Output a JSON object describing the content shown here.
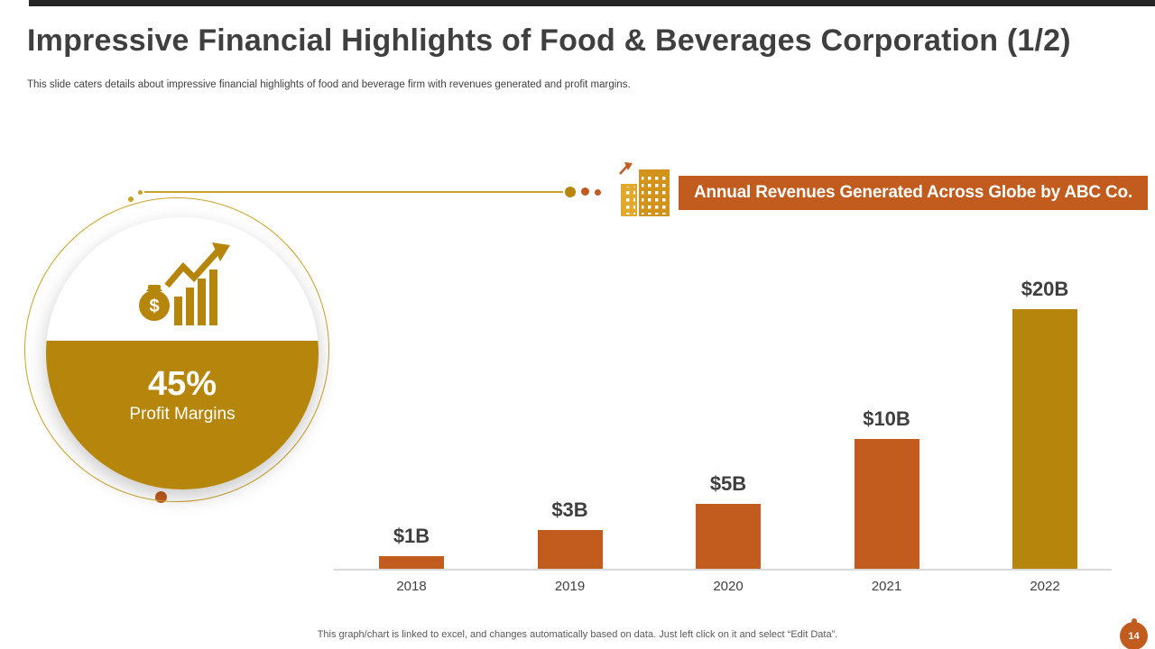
{
  "slide": {
    "title": "Impressive Financial Highlights of Food & Beverages Corporation (1/2)",
    "subtitle": "This slide caters details about impressive financial highlights of food and beverage firm with revenues generated and profit margins.",
    "footer_note": "This graph/chart is linked to excel, and changes automatically based on data. Just left click on it and select “Edit Data”.",
    "page_number": "14"
  },
  "profit_circle": {
    "value": "45%",
    "label": "Profit Margins",
    "icon": "money-bag-growth-chart-icon"
  },
  "banner": {
    "title": "Annual Revenues Generated Across Globe by ABC Co.",
    "icon": "building-icon"
  },
  "chart_data": {
    "type": "bar",
    "title": "Annual Revenues Generated Across Globe by ABC Co.",
    "categories": [
      "2018",
      "2019",
      "2020",
      "2021",
      "2022"
    ],
    "values": [
      1,
      3,
      5,
      10,
      20
    ],
    "value_labels": [
      "$1B",
      "$3B",
      "$5B",
      "$10B",
      "$20B"
    ],
    "unit": "billions USD",
    "xlabel": "",
    "ylabel": "",
    "ylim": [
      0,
      20
    ],
    "grid": false,
    "legend": "none",
    "bar_colors": [
      "#C25B1E",
      "#C25B1E",
      "#C25B1E",
      "#C25B1E",
      "#B5860B"
    ]
  },
  "colors": {
    "accent_orange": "#C25B1E",
    "accent_gold": "#B5860B",
    "line_gold": "#C9A227",
    "text_dark": "#3F3F3F",
    "top_bar": "#262626"
  }
}
